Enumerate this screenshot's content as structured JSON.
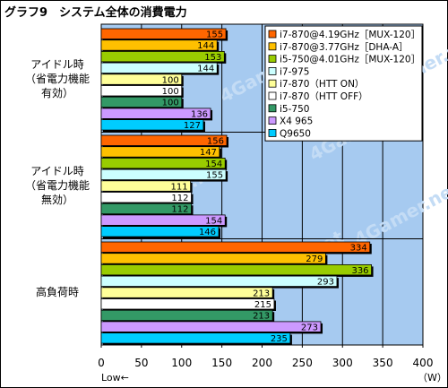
{
  "chart_data": {
    "type": "bar",
    "orientation": "horizontal",
    "title": "グラフ9　システム全体の消費電力",
    "categories": [
      [
        "アイドル時",
        "（省電力機能",
        "有効）"
      ],
      [
        "アイドル時",
        "（省電力機能",
        "無効）"
      ],
      [
        "高負荷時"
      ]
    ],
    "series": [
      {
        "name": "i7-870@4.19GHz［MUX-120］",
        "color": "#ff6600",
        "values": [
          155,
          156,
          334
        ]
      },
      {
        "name": "i7-870@3.77GHz［DHA-A］",
        "color": "#ffc000",
        "values": [
          144,
          147,
          279
        ]
      },
      {
        "name": "i5-750@4.01GHz［MUX-120］",
        "color": "#99cc00",
        "values": [
          153,
          154,
          336
        ]
      },
      {
        "name": "i7-975",
        "color": "#ccffff",
        "values": [
          144,
          155,
          293
        ]
      },
      {
        "name": "i7-870（HTT ON）",
        "color": "#ffff99",
        "values": [
          100,
          111,
          213
        ]
      },
      {
        "name": "i7-870（HTT OFF）",
        "color": "#ffffff",
        "values": [
          100,
          112,
          215
        ]
      },
      {
        "name": "i5-750",
        "color": "#339966",
        "values": [
          100,
          112,
          213
        ]
      },
      {
        "name": "X4 965",
        "color": "#cc99ff",
        "values": [
          136,
          154,
          273
        ]
      },
      {
        "name": "Q9650",
        "color": "#00ccff",
        "values": [
          127,
          146,
          235
        ]
      }
    ],
    "xlim": [
      0,
      400
    ],
    "xticks": [
      0,
      50,
      100,
      150,
      200,
      250,
      300,
      350,
      400
    ],
    "xlabel_left": "Low←",
    "xunit": "（W）",
    "plot_background": "#a6caf0",
    "legend": "top-right",
    "watermark": "4Gamer.net"
  }
}
